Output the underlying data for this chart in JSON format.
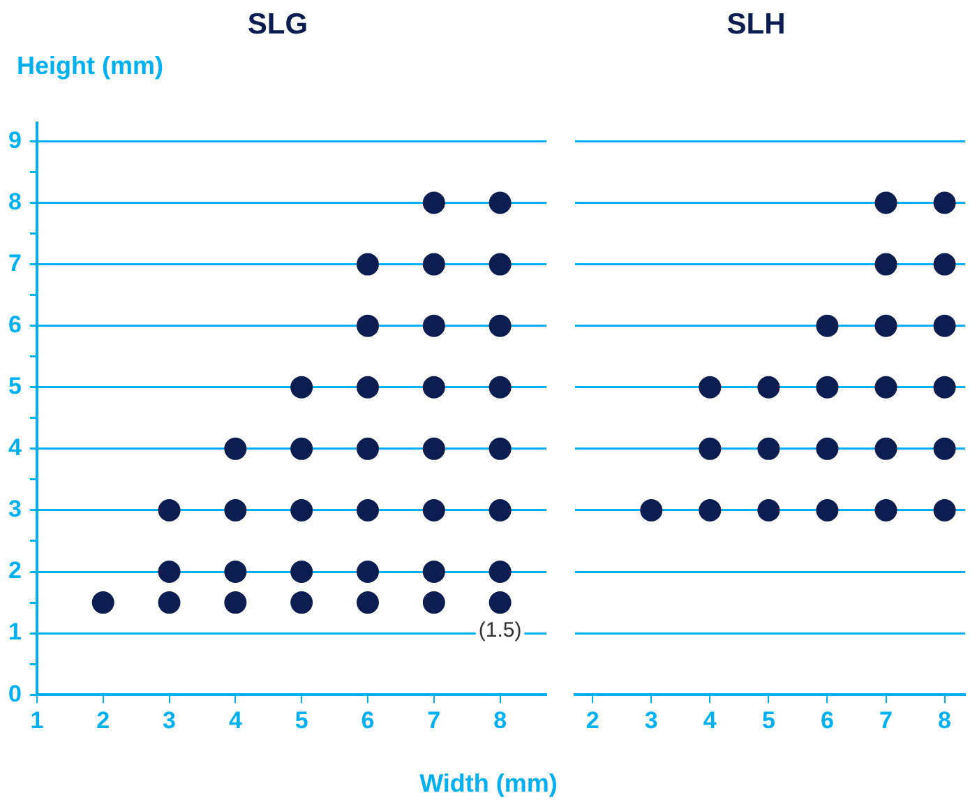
{
  "chart_data": [
    {
      "type": "scatter",
      "title": "SLG",
      "xlabel": "Width (mm)",
      "ylabel": "Height (mm)",
      "marker": "circle",
      "grid": "y",
      "xlim": [
        1,
        8.7
      ],
      "xticks": [
        1,
        2,
        3,
        4,
        5,
        6,
        7,
        8
      ],
      "ylim": [
        0,
        9.3
      ],
      "yticks": [
        0,
        {
          "value": 0.5,
          "label": null
        },
        1,
        {
          "value": 1.5,
          "label": null
        },
        2,
        {
          "value": 2.5,
          "label": null
        },
        3,
        {
          "value": 3.5,
          "label": null
        },
        4,
        {
          "value": 4.5,
          "label": null
        },
        5,
        {
          "value": 5.5,
          "label": null
        },
        6,
        {
          "value": 6.5,
          "label": null
        },
        7,
        {
          "value": 7.5,
          "label": null
        },
        8,
        {
          "value": 8.5,
          "label": null
        },
        9
      ],
      "series": [
        {
          "color": "#0b1d51",
          "x": [
            2,
            3,
            3,
            3,
            4,
            4,
            4,
            4,
            5,
            5,
            5,
            5,
            5,
            6,
            6,
            6,
            6,
            6,
            6,
            6,
            7,
            7,
            7,
            7,
            7,
            7,
            7,
            7,
            8,
            8,
            8,
            8,
            8,
            8,
            8,
            8
          ],
          "values": [
            1.5,
            1.5,
            2,
            3,
            1.5,
            2,
            3,
            4,
            1.5,
            2,
            3,
            4,
            5,
            1.5,
            2,
            3,
            4,
            5,
            6,
            7,
            1.5,
            2,
            3,
            4,
            5,
            6,
            7,
            8,
            1.5,
            2,
            3,
            4,
            5,
            6,
            7,
            8
          ]
        }
      ],
      "annotations": [
        {
          "text": "(1.5)",
          "x": 8,
          "y": 1.5
        }
      ]
    },
    {
      "type": "scatter",
      "title": "SLH",
      "marker": "circle",
      "grid": "y",
      "tick_labels": "x",
      "xlim": [
        1.7,
        8.35
      ],
      "xticks": [
        2,
        3,
        4,
        5,
        6,
        7,
        8
      ],
      "ylim": [
        0,
        9
      ],
      "yticks": [
        0,
        1,
        2,
        3,
        4,
        5,
        6,
        7,
        8,
        9
      ],
      "series": [
        {
          "color": "#0b1d51",
          "x": [
            3,
            4,
            4,
            4,
            5,
            5,
            5,
            6,
            6,
            6,
            6,
            7,
            7,
            7,
            7,
            7,
            7,
            8,
            8,
            8,
            8,
            8,
            8
          ],
          "values": [
            3,
            3,
            4,
            5,
            3,
            4,
            5,
            3,
            4,
            5,
            6,
            3,
            4,
            5,
            6,
            7,
            8,
            3,
            4,
            5,
            6,
            7,
            8
          ]
        }
      ]
    }
  ]
}
